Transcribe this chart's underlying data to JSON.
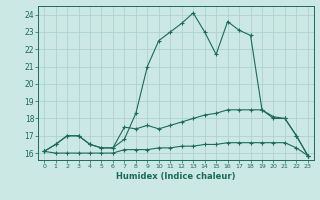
{
  "xlabel": "Humidex (Indice chaleur)",
  "bg_color": "#cce8e5",
  "grid_color": "#aacfcc",
  "line_color": "#1a6b5a",
  "xlim": [
    -0.5,
    23.5
  ],
  "ylim": [
    15.6,
    24.5
  ],
  "xticks": [
    0,
    1,
    2,
    3,
    4,
    5,
    6,
    7,
    8,
    9,
    10,
    11,
    12,
    13,
    14,
    15,
    16,
    17,
    18,
    19,
    20,
    21,
    22,
    23
  ],
  "yticks": [
    16,
    17,
    18,
    19,
    20,
    21,
    22,
    23,
    24
  ],
  "line1_x": [
    0,
    1,
    2,
    3,
    4,
    5,
    6,
    7,
    8,
    9,
    10,
    11,
    12,
    13,
    14,
    15,
    16,
    17,
    18,
    19,
    20,
    21,
    22,
    23
  ],
  "line1_y": [
    16.1,
    16.5,
    17.0,
    17.0,
    16.5,
    16.3,
    16.3,
    16.8,
    18.3,
    21.0,
    22.5,
    23.0,
    23.5,
    24.1,
    23.0,
    21.7,
    23.6,
    23.1,
    22.8,
    18.5,
    18.0,
    18.0,
    17.0,
    15.85
  ],
  "line2_x": [
    0,
    1,
    2,
    3,
    4,
    5,
    6,
    7,
    8,
    9,
    10,
    11,
    12,
    13,
    14,
    15,
    16,
    17,
    18,
    19,
    20,
    21,
    22,
    23
  ],
  "line2_y": [
    16.1,
    16.5,
    17.0,
    17.0,
    16.5,
    16.3,
    16.3,
    17.5,
    17.4,
    17.6,
    17.4,
    17.6,
    17.8,
    18.0,
    18.2,
    18.3,
    18.5,
    18.5,
    18.5,
    18.5,
    18.1,
    18.0,
    17.0,
    15.85
  ],
  "line3_x": [
    0,
    1,
    2,
    3,
    4,
    5,
    6,
    7,
    8,
    9,
    10,
    11,
    12,
    13,
    14,
    15,
    16,
    17,
    18,
    19,
    20,
    21,
    22,
    23
  ],
  "line3_y": [
    16.1,
    16.0,
    16.0,
    16.0,
    16.0,
    16.0,
    16.0,
    16.2,
    16.2,
    16.2,
    16.3,
    16.3,
    16.4,
    16.4,
    16.5,
    16.5,
    16.6,
    16.6,
    16.6,
    16.6,
    16.6,
    16.6,
    16.3,
    15.85
  ]
}
